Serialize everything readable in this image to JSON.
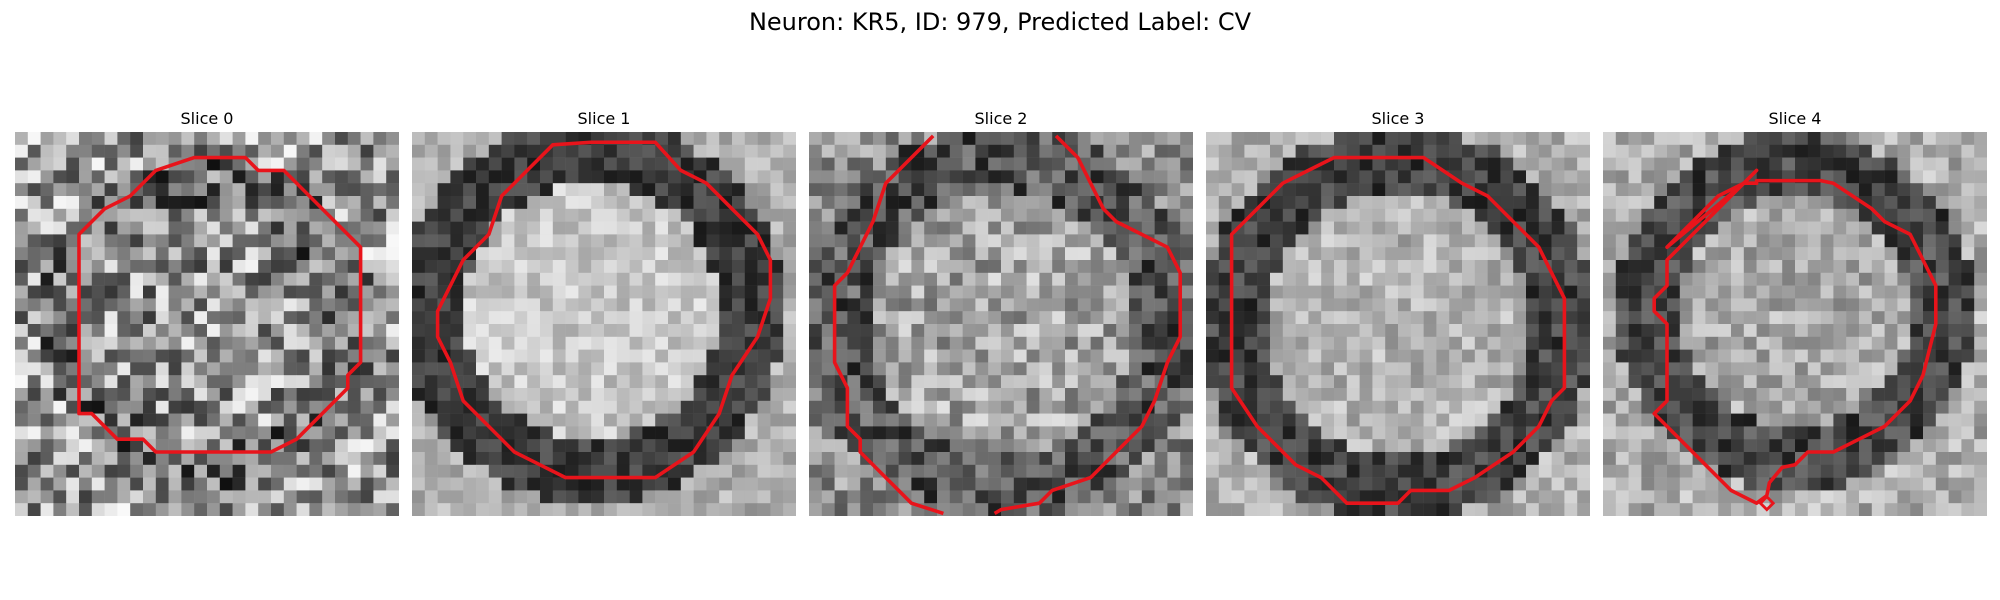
{
  "figure": {
    "title": "Neuron: KR5, ID: 979, Predicted Label: CV",
    "contour_color": "#e8141b",
    "panels": [
      {
        "label": "Slice 0"
      },
      {
        "label": "Slice 1"
      },
      {
        "label": "Slice 2"
      },
      {
        "label": "Slice 3"
      },
      {
        "label": "Slice 4"
      }
    ]
  }
}
